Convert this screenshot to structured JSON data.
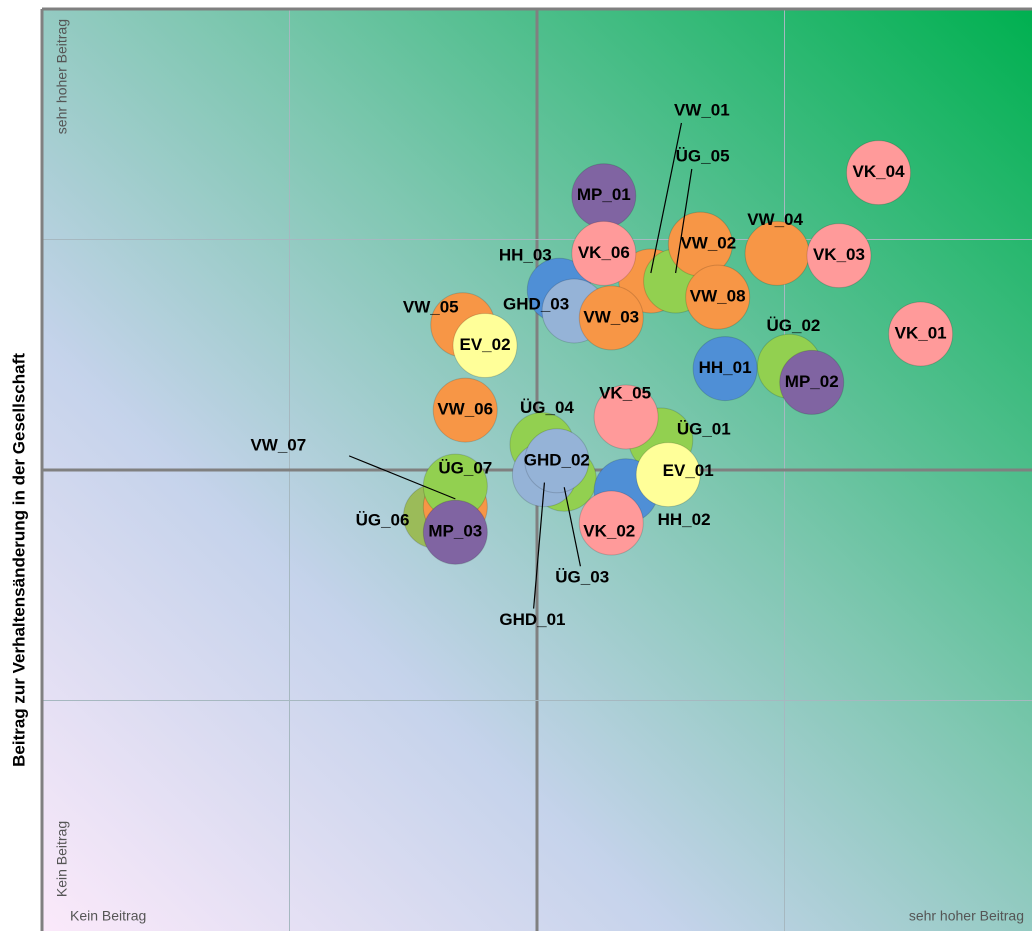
{
  "chart_data": {
    "type": "scatter",
    "ylabel": "Beitrag zur Verhaltensänderung in der Gesellschaft",
    "xlim": [
      0,
      4
    ],
    "ylim": [
      0,
      4
    ],
    "xticks": [
      {
        "value": 0,
        "label": "Kein Beitrag"
      },
      {
        "value": 4,
        "label": "sehr hoher Beitrag"
      }
    ],
    "yticks": [
      {
        "value": 0,
        "label": "Kein Beitrag"
      },
      {
        "value": 4,
        "label": "sehr hoher Beitrag"
      }
    ],
    "xgrid": [
      1,
      2,
      3
    ],
    "ygrid": [
      1,
      2,
      3
    ],
    "labels": [
      "VW_01",
      "ÜG_05",
      "MP_01",
      "HH_03",
      "GHD_03",
      "VW_03",
      "VK_06",
      "VW_02",
      "VW_08",
      "VW_04",
      "VK_03",
      "VK_04",
      "VK_01",
      "ÜG_02",
      "MP_02",
      "HH_01",
      "VW_05",
      "EV_02",
      "VW_06",
      "ÜG_03",
      "ÜG_04",
      "GHD_01",
      "GHD_02",
      "ÜG_01",
      "VK_05",
      "HH_02",
      "EV_01",
      "VK_02",
      "ÜG_06",
      "VW_07",
      "ÜG_07",
      "MP_03"
    ],
    "x": [
      2.46,
      2.56,
      2.27,
      2.09,
      2.15,
      2.3,
      2.27,
      2.66,
      2.73,
      2.97,
      3.22,
      3.38,
      3.55,
      3.02,
      3.11,
      2.76,
      1.7,
      1.79,
      1.71,
      2.11,
      2.02,
      2.03,
      2.08,
      2.5,
      2.36,
      2.36,
      2.53,
      2.3,
      1.59,
      1.67,
      1.67,
      1.67
    ],
    "values": [
      2.82,
      2.82,
      3.19,
      2.78,
      2.69,
      2.66,
      2.94,
      2.98,
      2.75,
      2.94,
      2.93,
      3.29,
      2.59,
      2.45,
      2.38,
      2.44,
      2.63,
      2.54,
      2.26,
      1.96,
      2.11,
      1.98,
      2.04,
      2.13,
      2.23,
      1.91,
      1.98,
      1.77,
      1.8,
      1.84,
      1.93,
      1.73
    ],
    "colors": [
      "#f79646",
      "#92d050",
      "#8064a2",
      "#4f8fd6",
      "#95b3d7",
      "#f79646",
      "#ff9a9a",
      "#f79646",
      "#f79646",
      "#f79646",
      "#ff9a9a",
      "#ff9a9a",
      "#ff9a9a",
      "#92d050",
      "#8064a2",
      "#4f8fd6",
      "#f79646",
      "#ffff99",
      "#f79646",
      "#92d050",
      "#92d050",
      "#95b3d7",
      "#95b3d7",
      "#92d050",
      "#ff9a9a",
      "#4f8fd6",
      "#ffff99",
      "#ff9a9a",
      "#9bbb59",
      "#f79646",
      "#92d050",
      "#8064a2"
    ]
  }
}
